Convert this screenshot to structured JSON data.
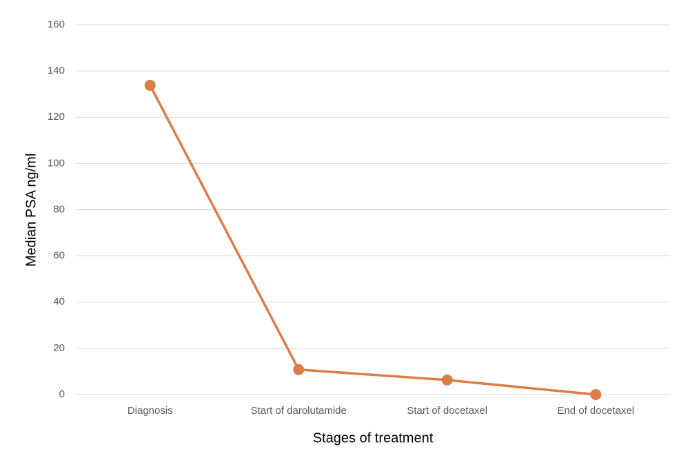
{
  "chart_data": {
    "type": "line",
    "x_label": "Stages of treatment",
    "y_label": "Median PSA ng/ml",
    "categories": [
      "Diagnosis",
      "Start of darolutamide",
      "Start of docetaxel",
      "End of docetaxel"
    ],
    "series": [
      {
        "name": "Median PSA",
        "color": "#dc7d45",
        "values": [
          133.8,
          10.8,
          6.3,
          0
        ]
      }
    ],
    "ylim": [
      0,
      160
    ],
    "yticks": [
      0,
      20,
      40,
      60,
      80,
      100,
      120,
      140,
      160
    ],
    "grid": true
  }
}
